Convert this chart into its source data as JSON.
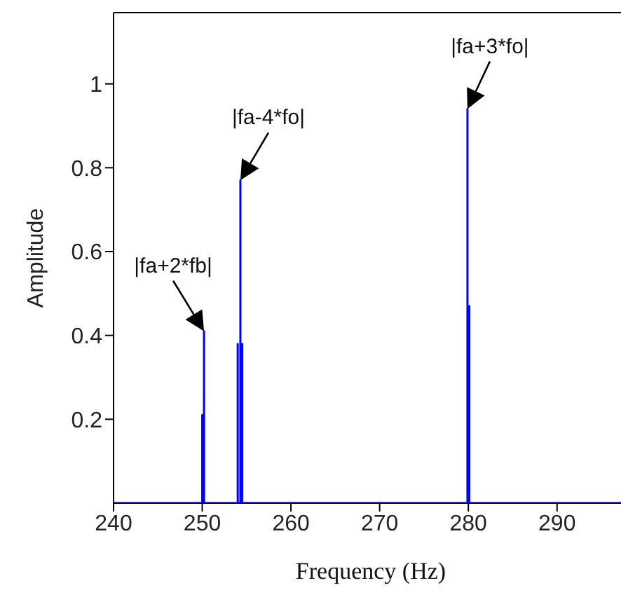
{
  "chart_data": {
    "type": "line",
    "xlabel": "Frequency (Hz)",
    "ylabel": "Amplitude",
    "x": [
      240,
      250,
      250,
      250,
      250.2,
      250.2,
      250.2,
      254,
      254,
      254,
      254.3,
      254.3,
      254.3,
      254.5,
      254.5,
      254.5,
      279.9,
      279.9,
      279.9,
      280.1,
      280.1,
      280.1,
      298
    ],
    "series": [
      {
        "color": "#0000ff",
        "values": [
          0,
          0,
          0.21,
          0,
          0,
          0.41,
          0,
          0,
          0.38,
          0,
          0,
          0.77,
          0,
          0,
          0.38,
          0,
          0,
          0.94,
          0,
          0,
          0.47,
          0,
          0
        ]
      }
    ],
    "xlim": [
      240,
      298
    ],
    "xticks": [
      240,
      250,
      260,
      270,
      280,
      290
    ],
    "ylim": [
      0,
      1.17
    ],
    "yticks": [
      0.2,
      0.4,
      0.6,
      0.8,
      1
    ],
    "grid": false,
    "legend": false,
    "marker": "none",
    "line_style": "solid",
    "annotations": [
      {
        "text": "|fa+2*fb|",
        "x": 250.2,
        "y": 0.41
      },
      {
        "text": "|fa-4*fo|",
        "x": 254.3,
        "y": 0.77
      },
      {
        "text": "|fa+3*fo|",
        "x": 279.9,
        "y": 0.94
      }
    ]
  }
}
